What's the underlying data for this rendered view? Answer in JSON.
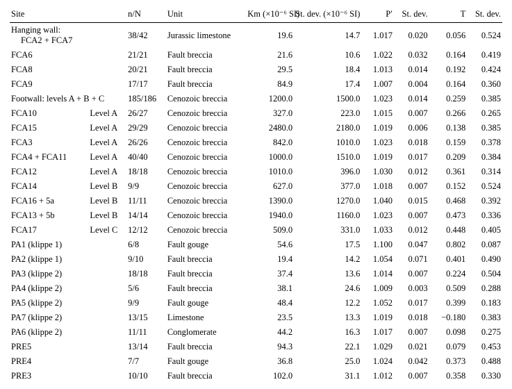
{
  "headers": {
    "site": "Site",
    "nN": "n/N",
    "unit": "Unit",
    "km": "Km (×10⁻⁶ SI)",
    "kmsd": "St. dev. (×10⁻⁶ SI)",
    "pp": "P′",
    "psd": "St. dev.",
    "t": "T",
    "tsd": "St. dev."
  },
  "rows": [
    {
      "site": "Hanging wall:",
      "sub": "FCA2 + FCA7",
      "level": "",
      "nN": "38/42",
      "unit": "Jurassic limestone",
      "km": "19.6",
      "kmsd": "14.7",
      "pp": "1.017",
      "psd": "0.020",
      "t": "0.056",
      "tsd": "0.524"
    },
    {
      "site": "FCA6",
      "level": "",
      "nN": "21/21",
      "unit": "Fault breccia",
      "km": "21.6",
      "kmsd": "10.6",
      "pp": "1.022",
      "psd": "0.032",
      "t": "0.164",
      "tsd": "0.419"
    },
    {
      "site": "FCA8",
      "level": "",
      "nN": "20/21",
      "unit": "Fault breccia",
      "km": "29.5",
      "kmsd": "18.4",
      "pp": "1.013",
      "psd": "0.014",
      "t": "0.192",
      "tsd": "0.424"
    },
    {
      "site": "FCA9",
      "level": "",
      "nN": "17/17",
      "unit": "Fault breccia",
      "km": "84.9",
      "kmsd": "17.4",
      "pp": "1.007",
      "psd": "0.004",
      "t": "0.164",
      "tsd": "0.360"
    },
    {
      "site": "Footwall: levels A + B + C",
      "level": "",
      "nN": "185/186",
      "unit": "Cenozoic breccia",
      "km": "1200.0",
      "kmsd": "1500.0",
      "pp": "1.023",
      "psd": "0.014",
      "t": "0.259",
      "tsd": "0.385"
    },
    {
      "site": "FCA10",
      "level": "Level A",
      "nN": "26/27",
      "unit": "Cenozoic breccia",
      "km": "327.0",
      "kmsd": "223.0",
      "pp": "1.015",
      "psd": "0.007",
      "t": "0.266",
      "tsd": "0.265"
    },
    {
      "site": "FCA15",
      "level": "Level A",
      "nN": "29/29",
      "unit": "Cenozoic breccia",
      "km": "2480.0",
      "kmsd": "2180.0",
      "pp": "1.019",
      "psd": "0.006",
      "t": "0.138",
      "tsd": "0.385"
    },
    {
      "site": "FCA3",
      "level": "Level A",
      "nN": "26/26",
      "unit": "Cenozoic breccia",
      "km": "842.0",
      "kmsd": "1010.0",
      "pp": "1.023",
      "psd": "0.018",
      "t": "0.159",
      "tsd": "0.378"
    },
    {
      "site": "FCA4 + FCA11",
      "level": "Level A",
      "nN": "40/40",
      "unit": "Cenozoic breccia",
      "km": "1000.0",
      "kmsd": "1510.0",
      "pp": "1.019",
      "psd": "0.017",
      "t": "0.209",
      "tsd": "0.384"
    },
    {
      "site": "FCA12",
      "level": "Level A",
      "nN": "18/18",
      "unit": "Cenozoic breccia",
      "km": "1010.0",
      "kmsd": "396.0",
      "pp": "1.030",
      "psd": "0.012",
      "t": "0.361",
      "tsd": "0.314"
    },
    {
      "site": "FCA14",
      "level": "Level B",
      "nN": "9/9",
      "unit": "Cenozoic breccia",
      "km": "627.0",
      "kmsd": "377.0",
      "pp": "1.018",
      "psd": "0.007",
      "t": "0.152",
      "tsd": "0.524"
    },
    {
      "site": "FCA16 + 5a",
      "level": "Level B",
      "nN": "11/11",
      "unit": "Cenozoic breccia",
      "km": "1390.0",
      "kmsd": "1270.0",
      "pp": "1.040",
      "psd": "0.015",
      "t": "0.468",
      "tsd": "0.392"
    },
    {
      "site": "FCA13 + 5b",
      "level": "Level B",
      "nN": "14/14",
      "unit": "Cenozoic breccia",
      "km": "1940.0",
      "kmsd": "1160.0",
      "pp": "1.023",
      "psd": "0.007",
      "t": "0.473",
      "tsd": "0.336"
    },
    {
      "site": "FCA17",
      "level": "Level C",
      "nN": "12/12",
      "unit": "Cenozoic breccia",
      "km": "509.0",
      "kmsd": "331.0",
      "pp": "1.033",
      "psd": "0.012",
      "t": "0.448",
      "tsd": "0.405"
    },
    {
      "site": "PA1 (klippe 1)",
      "level": "",
      "nN": "6/8",
      "unit": "Fault gouge",
      "km": "54.6",
      "kmsd": "17.5",
      "pp": "1.100",
      "psd": "0.047",
      "t": "0.802",
      "tsd": "0.087"
    },
    {
      "site": "PA2 (klippe 1)",
      "level": "",
      "nN": "9/10",
      "unit": "Fault breccia",
      "km": "19.4",
      "kmsd": "14.2",
      "pp": "1.054",
      "psd": "0.071",
      "t": "0.401",
      "tsd": "0.490"
    },
    {
      "site": "PA3 (klippe 2)",
      "level": "",
      "nN": "18/18",
      "unit": "Fault breccia",
      "km": "37.4",
      "kmsd": "13.6",
      "pp": "1.014",
      "psd": "0.007",
      "t": "0.224",
      "tsd": "0.504"
    },
    {
      "site": "PA4 (klippe 2)",
      "level": "",
      "nN": "5/6",
      "unit": "Fault breccia",
      "km": "38.1",
      "kmsd": "24.6",
      "pp": "1.009",
      "psd": "0.003",
      "t": "0.509",
      "tsd": "0.288"
    },
    {
      "site": "PA5 (klippe 2)",
      "level": "",
      "nN": "9/9",
      "unit": "Fault gouge",
      "km": "48.4",
      "kmsd": "12.2",
      "pp": "1.052",
      "psd": "0.017",
      "t": "0.399",
      "tsd": "0.183"
    },
    {
      "site": "PA7 (klippe 2)",
      "level": "",
      "nN": "13/15",
      "unit": "Limestone",
      "km": "23.5",
      "kmsd": "13.3",
      "pp": "1.019",
      "psd": "0.018",
      "t": "−0.180",
      "tsd": "0.383"
    },
    {
      "site": "PA6 (klippe 2)",
      "level": "",
      "nN": "11/11",
      "unit": "Conglomerate",
      "km": "44.2",
      "kmsd": "16.3",
      "pp": "1.017",
      "psd": "0.007",
      "t": "0.098",
      "tsd": "0.275"
    },
    {
      "site": "PRE5",
      "level": "",
      "nN": "13/14",
      "unit": "Fault breccia",
      "km": "94.3",
      "kmsd": "22.1",
      "pp": "1.029",
      "psd": "0.021",
      "t": "0.079",
      "tsd": "0.453"
    },
    {
      "site": "PRE4",
      "level": "",
      "nN": "7/7",
      "unit": "Fault gouge",
      "km": "36.8",
      "kmsd": "25.0",
      "pp": "1.024",
      "psd": "0.042",
      "t": "0.373",
      "tsd": "0.488"
    },
    {
      "site": "PRE3",
      "level": "",
      "nN": "10/10",
      "unit": "Fault breccia",
      "km": "102.0",
      "kmsd": "31.1",
      "pp": "1.012",
      "psd": "0.007",
      "t": "0.358",
      "tsd": "0.330"
    }
  ]
}
